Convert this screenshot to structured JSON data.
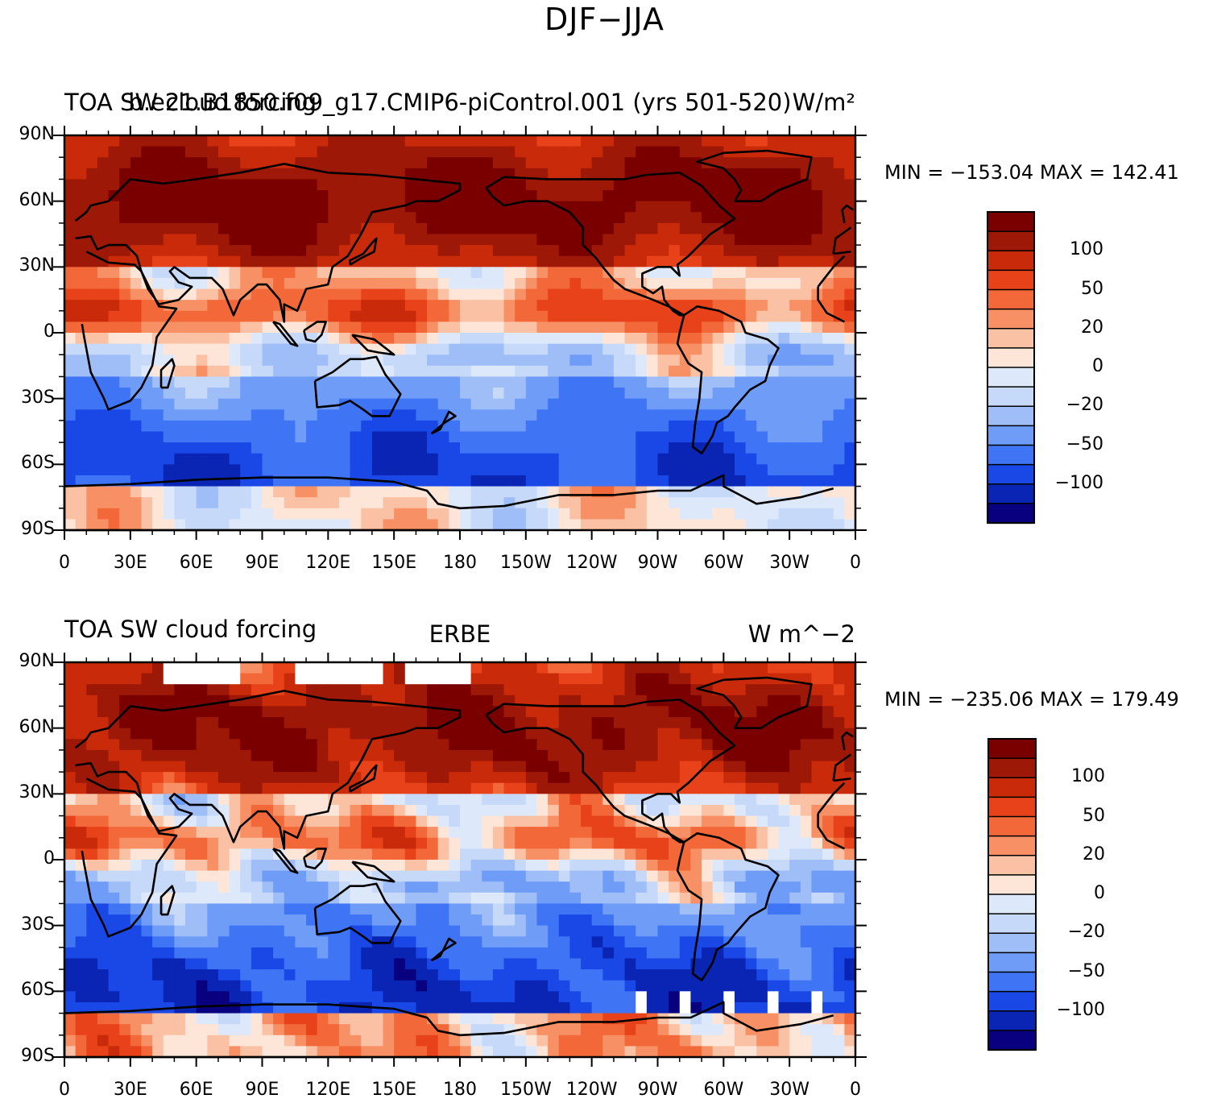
{
  "figure_title": "DJF−JJA",
  "colors": {
    "levels": [
      "#08007f",
      "#0a24b3",
      "#1a48e6",
      "#3f74f5",
      "#6e9cf7",
      "#9fbef8",
      "#c7d9f8",
      "#dde9fb",
      "#fde6d8",
      "#fbc1a4",
      "#f79064",
      "#f36838",
      "#e8421a",
      "#c82a0a",
      "#9e1808",
      "#7a0000"
    ],
    "missing": "#ffffff",
    "coast": "#000000"
  },
  "panels": [
    {
      "left_label": "TOA SW cloud forcing",
      "center_label": "b.e21.B1850.f09_g17.CMIP6-piControl.001 (yrs 501-520)",
      "right_label": "W/m²",
      "min_max": "MIN = −153.04  MAX = 142.41",
      "colorbar_labels": [
        "100",
        "50",
        "20",
        "0",
        "−20",
        "−50",
        "−100"
      ],
      "lat_labels": [
        "90N",
        "60N",
        "30N",
        "0",
        "30S",
        "60S",
        "90S"
      ],
      "lon_labels": [
        "0",
        "30E",
        "60E",
        "90E",
        "120E",
        "150E",
        "180",
        "150W",
        "120W",
        "90W",
        "60W",
        "30W",
        "0"
      ]
    },
    {
      "left_label": "TOA SW cloud forcing",
      "center_label": "ERBE",
      "right_label": "W m^−2",
      "min_max": "MIN = −235.06  MAX = 179.49",
      "colorbar_labels": [
        "100",
        "50",
        "20",
        "0",
        "−20",
        "−50",
        "−100"
      ],
      "lat_labels": [
        "90N",
        "60N",
        "30N",
        "0",
        "30S",
        "60S",
        "90S"
      ],
      "lon_labels": [
        "0",
        "30E",
        "60E",
        "90E",
        "120E",
        "150E",
        "180",
        "150W",
        "120W",
        "90W",
        "60W",
        "30W",
        "0"
      ]
    }
  ]
}
